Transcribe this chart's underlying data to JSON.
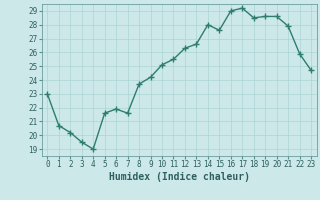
{
  "x": [
    0,
    1,
    2,
    3,
    4,
    5,
    6,
    7,
    8,
    9,
    10,
    11,
    12,
    13,
    14,
    15,
    16,
    17,
    18,
    19,
    20,
    21,
    22,
    23
  ],
  "y": [
    23,
    20.7,
    20.2,
    19.5,
    19.0,
    21.6,
    21.9,
    21.6,
    23.7,
    24.2,
    25.1,
    25.5,
    26.3,
    26.6,
    28.0,
    27.6,
    29.0,
    29.2,
    28.5,
    28.6,
    28.6,
    27.9,
    25.9,
    24.7
  ],
  "line_color": "#2e7d6e",
  "marker": "+",
  "marker_size": 4,
  "marker_lw": 1.0,
  "bg_color": "#cce8e8",
  "grid_color": "#aad4d4",
  "xlabel": "Humidex (Indice chaleur)",
  "xlim": [
    -0.5,
    23.5
  ],
  "ylim": [
    18.5,
    29.5
  ],
  "yticks": [
    19,
    20,
    21,
    22,
    23,
    24,
    25,
    26,
    27,
    28,
    29
  ],
  "xticks": [
    0,
    1,
    2,
    3,
    4,
    5,
    6,
    7,
    8,
    9,
    10,
    11,
    12,
    13,
    14,
    15,
    16,
    17,
    18,
    19,
    20,
    21,
    22,
    23
  ],
  "tick_fontsize": 5.5,
  "xlabel_fontsize": 7,
  "line_width": 1.0
}
